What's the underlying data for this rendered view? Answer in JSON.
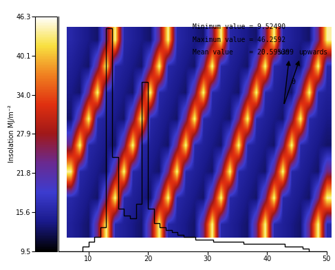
{
  "chart_data": {
    "type": "histogram",
    "bins": [
      5,
      6,
      7,
      8,
      9,
      10,
      11,
      12,
      13,
      14,
      15,
      16,
      17,
      18,
      19,
      20,
      21,
      22,
      23,
      24,
      25,
      26,
      27,
      28,
      29,
      30,
      31,
      32,
      33,
      34,
      35,
      36,
      37,
      38,
      39,
      40,
      41,
      42,
      43,
      44,
      45,
      46,
      47,
      48,
      49,
      50
    ],
    "counts": [
      0,
      0,
      0,
      0,
      2,
      4,
      6,
      10,
      95,
      40,
      18,
      15,
      14,
      20,
      72,
      18,
      12,
      10,
      9,
      8,
      7,
      6,
      6,
      5,
      5,
      5,
      4,
      4,
      4,
      4,
      4,
      3,
      3,
      3,
      3,
      3,
      3,
      3,
      2,
      2,
      2,
      1,
      0,
      0,
      0
    ],
    "color": "#000000",
    "xlim": [
      5,
      50
    ],
    "xticks": [
      10,
      20,
      30,
      40,
      50
    ],
    "ylim": [
      0,
      100
    ],
    "yticks": [],
    "tick_labels": "x",
    "annotations": [
      "Minimum value = 9.52490",
      "Maximum value = 46.2592",
      "Mean value    = 20.595399"
    ],
    "sun_labels": [
      "sun",
      "upwards",
      "θ"
    ],
    "colorbar": {
      "label": "Insolation MJ/m⁻²",
      "range": [
        9.5,
        46.3
      ],
      "ticks": [
        9.5,
        15.6,
        21.8,
        27.9,
        34.0,
        40.1,
        46.3
      ]
    },
    "surface_cells": [
      [
        16,
        15,
        14,
        13,
        24,
        44,
        16,
        15,
        14,
        13,
        24,
        44,
        16,
        15,
        14,
        13,
        24,
        44,
        16,
        15,
        14,
        13,
        24,
        44,
        16,
        15,
        14,
        13,
        24,
        44
      ],
      [
        15,
        14,
        13,
        24,
        44,
        16,
        15,
        14,
        13,
        24,
        44,
        16,
        15,
        14,
        13,
        24,
        44,
        16,
        15,
        14,
        13,
        24,
        44,
        16,
        15,
        14,
        13,
        24,
        44,
        16
      ],
      [
        14,
        13,
        24,
        44,
        16,
        15,
        14,
        13,
        24,
        44,
        16,
        15,
        14,
        13,
        24,
        44,
        16,
        15,
        14,
        13,
        24,
        44,
        16,
        15,
        14,
        13,
        24,
        44,
        16,
        15
      ],
      [
        13,
        24,
        44,
        16,
        15,
        14,
        13,
        24,
        44,
        16,
        15,
        14,
        13,
        24,
        44,
        16,
        15,
        14,
        13,
        24,
        44,
        16,
        15,
        14,
        13,
        24,
        44,
        16,
        15,
        14
      ],
      [
        24,
        44,
        16,
        15,
        14,
        13,
        24,
        44,
        16,
        15,
        14,
        13,
        24,
        44,
        16,
        15,
        14,
        13,
        24,
        44,
        16,
        15,
        14,
        13,
        24,
        44,
        16,
        15,
        14,
        13
      ],
      [
        44,
        16,
        15,
        14,
        13,
        24,
        44,
        16,
        15,
        14,
        13,
        24,
        44,
        16,
        15,
        14,
        13,
        24,
        44,
        16,
        15,
        14,
        13,
        24,
        44,
        16,
        15,
        14,
        13,
        24
      ],
      [
        16,
        15,
        14,
        13,
        24,
        44,
        16,
        15,
        14,
        13,
        24,
        44,
        16,
        15,
        14,
        13,
        24,
        44,
        16,
        15,
        14,
        13,
        24,
        44,
        16,
        15,
        14,
        13,
        24,
        44
      ],
      [
        15,
        14,
        13,
        24,
        44,
        16,
        15,
        14,
        13,
        24,
        44,
        16,
        15,
        14,
        13,
        24,
        44,
        16,
        15,
        14,
        13,
        24,
        44,
        16,
        15,
        14,
        13,
        24,
        44,
        16
      ]
    ]
  }
}
